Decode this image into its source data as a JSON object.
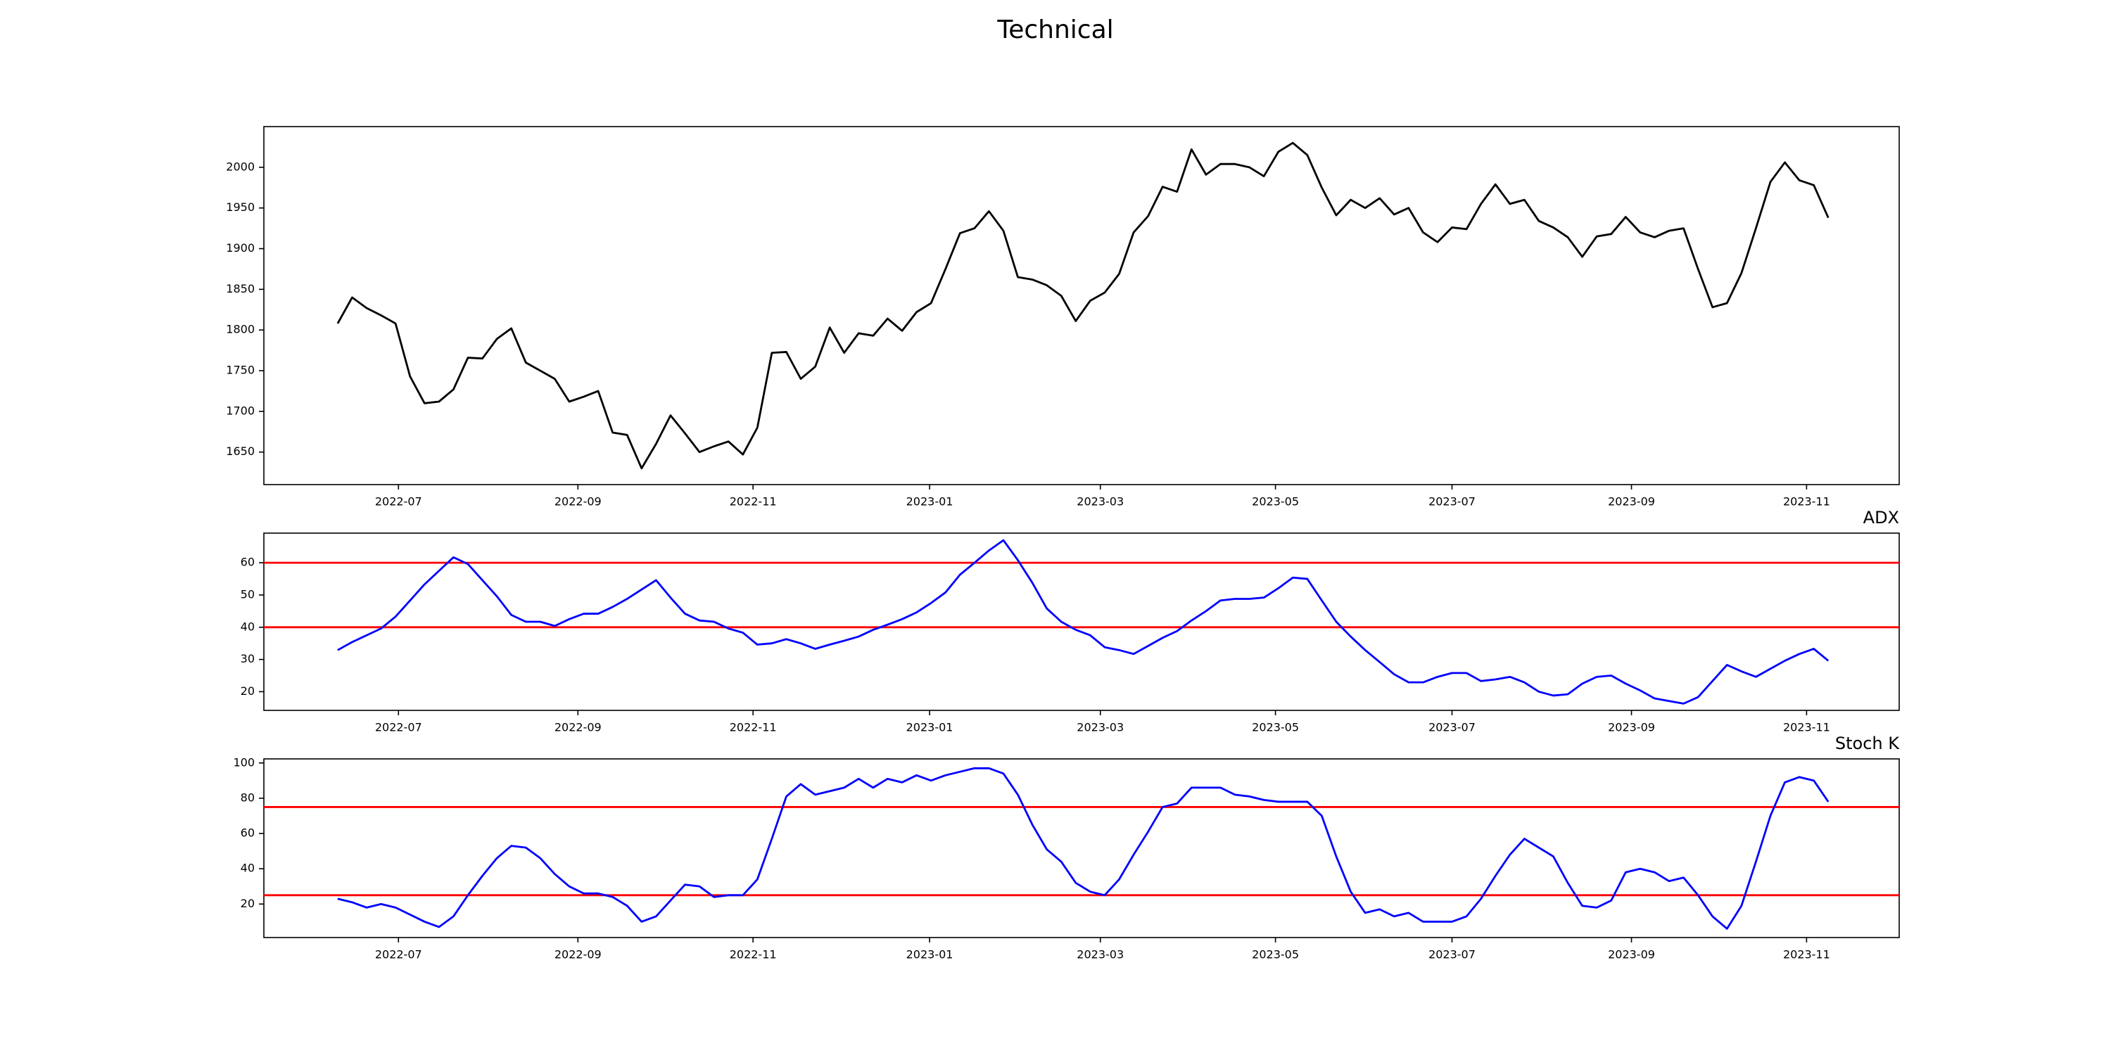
{
  "title": "Technical",
  "chart_data": [
    {
      "type": "line",
      "color": "black",
      "values": [
        1808,
        1840,
        1827,
        1818,
        1808,
        1743,
        1710,
        1712,
        1727,
        1766,
        1765,
        1789,
        1802,
        1760,
        1750,
        1740,
        1712,
        1718,
        1725,
        1674,
        1671,
        1630,
        1660,
        1695,
        1673,
        1650,
        1657,
        1663,
        1647,
        1680,
        1772,
        1773,
        1740,
        1755,
        1803,
        1772,
        1796,
        1793,
        1814,
        1799,
        1822,
        1833,
        1875,
        1919,
        1925,
        1946,
        1922,
        1865,
        1862,
        1855,
        1842,
        1811,
        1836,
        1846,
        1869,
        1920,
        1940,
        1976,
        1970,
        2022,
        1991,
        2004,
        2004,
        2000,
        1989,
        2019,
        2030,
        2015,
        1975,
        1941,
        1960,
        1950,
        1962,
        1942,
        1950,
        1920,
        1908,
        1926,
        1924,
        1955,
        1979,
        1955,
        1960,
        1934,
        1926,
        1914,
        1890,
        1915,
        1918,
        1939,
        1920,
        1914,
        1922,
        1925,
        1875,
        1828,
        1833,
        1870,
        1925,
        1982,
        2006,
        1984,
        1978,
        1938
      ],
      "ylim": [
        1610,
        2050
      ],
      "yticks": [
        1650,
        1700,
        1750,
        1800,
        1850,
        1900,
        1950,
        2000
      ],
      "xlim": [
        -5.1,
        107.9
      ],
      "xticks": [
        {
          "value": 4.2,
          "label": "2022-07"
        },
        {
          "value": 16.6,
          "label": "2022-09"
        },
        {
          "value": 28.7,
          "label": "2022-11"
        },
        {
          "value": 40.9,
          "label": "2023-01"
        },
        {
          "value": 52.7,
          "label": "2023-03"
        },
        {
          "value": 64.8,
          "label": "2023-05"
        },
        {
          "value": 77.0,
          "label": "2023-07"
        },
        {
          "value": 89.4,
          "label": "2023-09"
        },
        {
          "value": 101.5,
          "label": "2023-11"
        }
      ]
    },
    {
      "type": "line",
      "title": "ADX",
      "color": "blue",
      "values": [
        32.9,
        35.4,
        37.5,
        39.6,
        43.3,
        48.3,
        53.3,
        57.5,
        61.7,
        59.6,
        54.6,
        49.6,
        43.8,
        41.7,
        41.7,
        40.4,
        42.5,
        44.2,
        44.2,
        46.3,
        48.8,
        51.7,
        54.6,
        49.2,
        44.2,
        42.1,
        41.7,
        39.6,
        38.3,
        34.6,
        35.0,
        36.3,
        35.0,
        33.3,
        34.6,
        35.8,
        37.1,
        39.2,
        40.8,
        42.5,
        44.6,
        47.5,
        50.8,
        56.3,
        60.0,
        63.8,
        67.0,
        60.8,
        53.8,
        45.8,
        41.7,
        39.2,
        37.5,
        33.8,
        32.9,
        31.7,
        34.2,
        36.7,
        38.8,
        42.1,
        45.0,
        48.3,
        48.8,
        48.8,
        49.2,
        52.1,
        55.4,
        55.0,
        48.3,
        41.7,
        37.1,
        32.9,
        29.2,
        25.4,
        22.9,
        22.9,
        24.6,
        25.8,
        25.8,
        23.3,
        23.8,
        24.6,
        22.9,
        20.0,
        18.8,
        19.2,
        22.5,
        24.6,
        25.0,
        22.5,
        20.4,
        17.9,
        17.1,
        16.3,
        18.3,
        23.3,
        28.3,
        26.3,
        24.6,
        27.1,
        29.6,
        31.7,
        33.3,
        29.6
      ],
      "ylim": [
        14.2,
        69.2
      ],
      "yticks": [
        20,
        30,
        40,
        50,
        60
      ],
      "hlines": [
        40,
        60
      ],
      "hline_color": "red",
      "xlim": [
        -5.1,
        107.9
      ],
      "xticks": [
        {
          "value": 4.2,
          "label": "2022-07"
        },
        {
          "value": 16.6,
          "label": "2022-09"
        },
        {
          "value": 28.7,
          "label": "2022-11"
        },
        {
          "value": 40.9,
          "label": "2023-01"
        },
        {
          "value": 52.7,
          "label": "2023-03"
        },
        {
          "value": 64.8,
          "label": "2023-05"
        },
        {
          "value": 77.0,
          "label": "2023-07"
        },
        {
          "value": 89.4,
          "label": "2023-09"
        },
        {
          "value": 101.5,
          "label": "2023-11"
        }
      ]
    },
    {
      "type": "line",
      "title": "Stoch K",
      "color": "blue",
      "values": [
        23,
        21,
        18,
        20,
        18,
        14,
        10,
        7,
        13,
        25,
        36,
        46,
        53,
        52,
        46,
        37,
        30,
        26,
        26,
        24,
        19,
        10,
        13,
        22,
        31,
        30,
        24,
        25,
        25,
        34,
        57,
        81,
        88,
        82,
        84,
        86,
        91,
        86,
        91,
        89,
        93,
        90,
        93,
        95,
        97,
        97,
        94,
        82,
        65,
        51,
        44,
        32,
        27,
        25,
        34,
        48,
        61,
        75,
        77,
        86,
        86,
        86,
        82,
        81,
        79,
        78,
        78,
        78,
        70,
        47,
        27,
        15,
        17,
        13,
        15,
        10,
        10,
        10,
        13,
        23,
        36,
        48,
        57,
        52,
        47,
        32,
        19,
        18,
        22,
        38,
        40,
        38,
        33,
        35,
        25,
        13,
        6,
        19,
        44,
        70,
        89,
        92,
        90,
        78
      ],
      "ylim": [
        1,
        102.3
      ],
      "yticks": [
        20,
        40,
        60,
        80,
        100
      ],
      "hlines": [
        25,
        75
      ],
      "hline_color": "red",
      "xlim": [
        -5.1,
        107.9
      ],
      "xticks": [
        {
          "value": 4.2,
          "label": "2022-07"
        },
        {
          "value": 16.6,
          "label": "2022-09"
        },
        {
          "value": 28.7,
          "label": "2022-11"
        },
        {
          "value": 40.9,
          "label": "2023-01"
        },
        {
          "value": 52.7,
          "label": "2023-03"
        },
        {
          "value": 64.8,
          "label": "2023-05"
        },
        {
          "value": 77.0,
          "label": "2023-07"
        },
        {
          "value": 89.4,
          "label": "2023-09"
        },
        {
          "value": 101.5,
          "label": "2023-11"
        }
      ]
    }
  ]
}
